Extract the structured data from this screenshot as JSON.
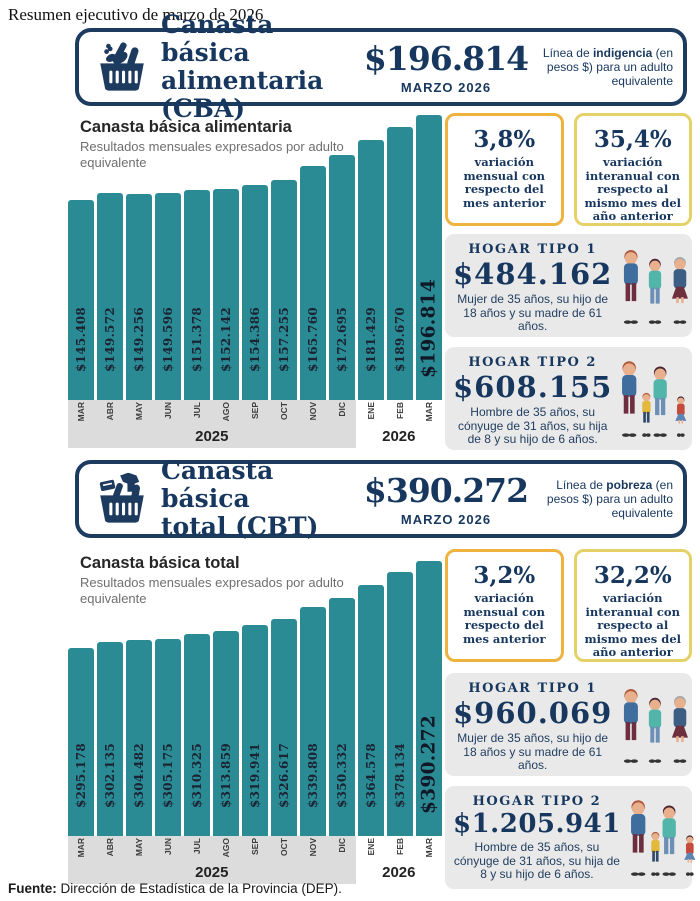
{
  "page": {
    "top_title": "Resumen ejecutivo de marzo de 2026",
    "footer_label": "Fuente:",
    "footer_text": " Dirección de Estadística de la Provincia (DEP)."
  },
  "colors": {
    "navy": "#1d3a5f",
    "text_navy": "#17375e",
    "bar_teal": "#2b8b95",
    "amber_border": "#eeb33f",
    "pale_yellow_border": "#e4d269",
    "gray_box": "#e9e9e9",
    "month_band_gray": "#dcdcdc"
  },
  "chart_data": [
    {
      "type": "bar",
      "title": "Canasta básica alimentaria",
      "subtitle": "Resultados mensuales expresados por adulto equivalente",
      "categories": [
        "MAR",
        "ABR",
        "MAY",
        "JUN",
        "JUL",
        "AGO",
        "SEP",
        "OCT",
        "NOV",
        "DIC",
        "ENE",
        "FEB",
        "MAR"
      ],
      "values": [
        145408,
        149572,
        149256,
        149596,
        151378,
        152142,
        154386,
        157255,
        165760,
        172695,
        181429,
        189670,
        196814
      ],
      "value_labels": [
        "$145.408",
        "$149.572",
        "$149.256",
        "$149.596",
        "$151.378",
        "$152.142",
        "$154.386",
        "$157.255",
        "$165.760",
        "$172.695",
        "$181.429",
        "$189.670",
        "$196.814"
      ],
      "year_groups": [
        {
          "label": "2025",
          "count": 10
        },
        {
          "label": "2026",
          "count": 3
        }
      ],
      "bar_color": "#2b8b95",
      "grid": false,
      "legend": "none"
    },
    {
      "type": "bar",
      "title": "Canasta básica total",
      "subtitle": "Resultados mensuales expresados por adulto equivalente",
      "categories": [
        "MAR",
        "ABR",
        "MAY",
        "JUN",
        "JUL",
        "AGO",
        "SEP",
        "OCT",
        "NOV",
        "DIC",
        "ENE",
        "FEB",
        "MAR"
      ],
      "values": [
        295178,
        302135,
        304482,
        305175,
        310325,
        313859,
        319941,
        326617,
        339808,
        350332,
        364578,
        378134,
        390272
      ],
      "value_labels": [
        "$295.178",
        "$302.135",
        "$304.482",
        "$305.175",
        "$310.325",
        "$313.859",
        "$319.941",
        "$326.617",
        "$339.808",
        "$350.332",
        "$364.578",
        "$378.134",
        "$390.272"
      ],
      "year_groups": [
        {
          "label": "2025",
          "count": 10
        },
        {
          "label": "2026",
          "count": 3
        }
      ],
      "bar_color": "#2b8b95",
      "grid": false,
      "legend": "none"
    }
  ],
  "sections": [
    {
      "header": {
        "title_line1": "Canasta básica",
        "title_line2": "alimentaria (CBA)",
        "value": "$196.814",
        "period": "MARZO 2026",
        "note_pre": "Línea de ",
        "note_bold": "indigencia",
        "note_post": " (en pesos $) para un adulto equivalente"
      },
      "variations": [
        {
          "value": "3,8%",
          "label": "variación mensual con respecto del mes anterior"
        },
        {
          "value": "35,4%",
          "label": "variación interanual con respecto al mismo mes del año anterior"
        }
      ],
      "households": [
        {
          "title": "HOGAR TIPO 1",
          "value": "$484.162",
          "desc": "Mujer de 35 años, su hijo de 18 años y su madre de 61 años."
        },
        {
          "title": "HOGAR TIPO 2",
          "value": "$608.155",
          "desc": "Hombre de 35 años, su cónyuge de 31 años, su hija de 8 y su hijo de 6 años."
        }
      ]
    },
    {
      "header": {
        "title_line1": "Canasta básica",
        "title_line2": "total (CBT)",
        "value": "$390.272",
        "period": "MARZO 2026",
        "note_pre": "Línea de ",
        "note_bold": "pobreza",
        "note_post": " (en pesos $) para un adulto equivalente"
      },
      "variations": [
        {
          "value": "3,2%",
          "label": "variación mensual con respecto del mes anterior"
        },
        {
          "value": "32,2%",
          "label": "variación interanual con respecto al mismo mes del año anterior"
        }
      ],
      "households": [
        {
          "title": "HOGAR TIPO 1",
          "value": "$960.069",
          "desc": "Mujer de 35 años, su hijo de 18 años y su madre de 61 años."
        },
        {
          "title": "HOGAR TIPO 2",
          "value": "$1.205.941",
          "desc": "Hombre de 35 años, su cónyuge de 31 años, su hija de 8 y su hijo de 6 años."
        }
      ]
    }
  ]
}
